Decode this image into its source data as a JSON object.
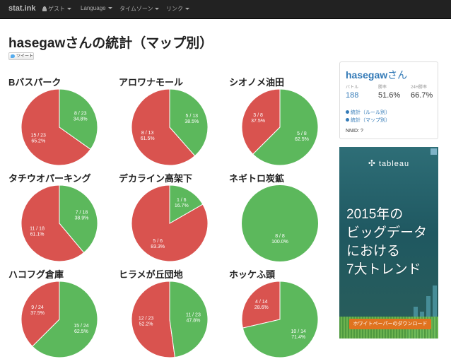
{
  "navbar": {
    "brand": "stat.ink",
    "items": [
      {
        "label": "ゲスト",
        "icon": "user-icon"
      },
      {
        "label": "Language"
      },
      {
        "label": "タイムゾーン"
      },
      {
        "label": "リンク"
      }
    ]
  },
  "page_title": "hasegawさんの統計（マップ別）",
  "tweet_label": "ツイート",
  "pies": [
    {
      "title": "Bバスパーク",
      "win_label": "8 / 23",
      "win_pct": "34.8%",
      "lose_label": "15 / 23",
      "lose_pct": "65.2%",
      "win_fraction": 0.348
    },
    {
      "title": "アロワナモール",
      "win_label": "5 / 13",
      "win_pct": "38.5%",
      "lose_label": "8 / 13",
      "lose_pct": "61.5%",
      "win_fraction": 0.385
    },
    {
      "title": "シオノメ油田",
      "win_label": "5 / 8",
      "win_pct": "62.5%",
      "lose_label": "3 / 8",
      "lose_pct": "37.5%",
      "win_fraction": 0.625
    },
    {
      "title": "タチウオパーキング",
      "win_label": "7 / 18",
      "win_pct": "38.9%",
      "lose_label": "11 / 18",
      "lose_pct": "61.1%",
      "win_fraction": 0.389
    },
    {
      "title": "デカライン高架下",
      "win_label": "1 / 6",
      "win_pct": "16.7%",
      "lose_label": "5 / 6",
      "lose_pct": "83.3%",
      "win_fraction": 0.167
    },
    {
      "title": "ネギトロ炭鉱",
      "win_label": "8 / 8",
      "win_pct": "100.0%",
      "lose_label": "",
      "lose_pct": "",
      "win_fraction": 1.0
    },
    {
      "title": "ハコフグ倉庫",
      "win_label": "15 / 24",
      "win_pct": "62.5%",
      "lose_label": "9 / 24",
      "lose_pct": "37.5%",
      "win_fraction": 0.625
    },
    {
      "title": "ヒラメが丘団地",
      "win_label": "11 / 23",
      "win_pct": "47.8%",
      "lose_label": "12 / 23",
      "lose_pct": "52.2%",
      "win_fraction": 0.478
    },
    {
      "title": "ホッケふ頭",
      "win_label": "10 / 14",
      "win_pct": "71.4%",
      "lose_label": "4 / 14",
      "lose_pct": "28.6%",
      "win_fraction": 0.714
    }
  ],
  "colors": {
    "win": "#5cb85c",
    "lose": "#d9534f"
  },
  "stats_panel": {
    "name": "hasegaw",
    "name_suffix": "さん",
    "battle_label": "バトル",
    "battle_value": "188",
    "winrate_label": "勝率",
    "winrate_value": "51.6%",
    "winrate24_label": "24H勝率",
    "winrate24_value": "66.7%",
    "link_rule": "統計（ルール別）",
    "link_map": "統計（マップ別）",
    "nnid": "NNID: ?"
  },
  "ad": {
    "logo": "tableau",
    "line1": "2015年の",
    "line2": "ビッグデータ",
    "line3": "における",
    "line4": "7大トレンド",
    "button": "ホワイトペーパーのダウンロード"
  }
}
